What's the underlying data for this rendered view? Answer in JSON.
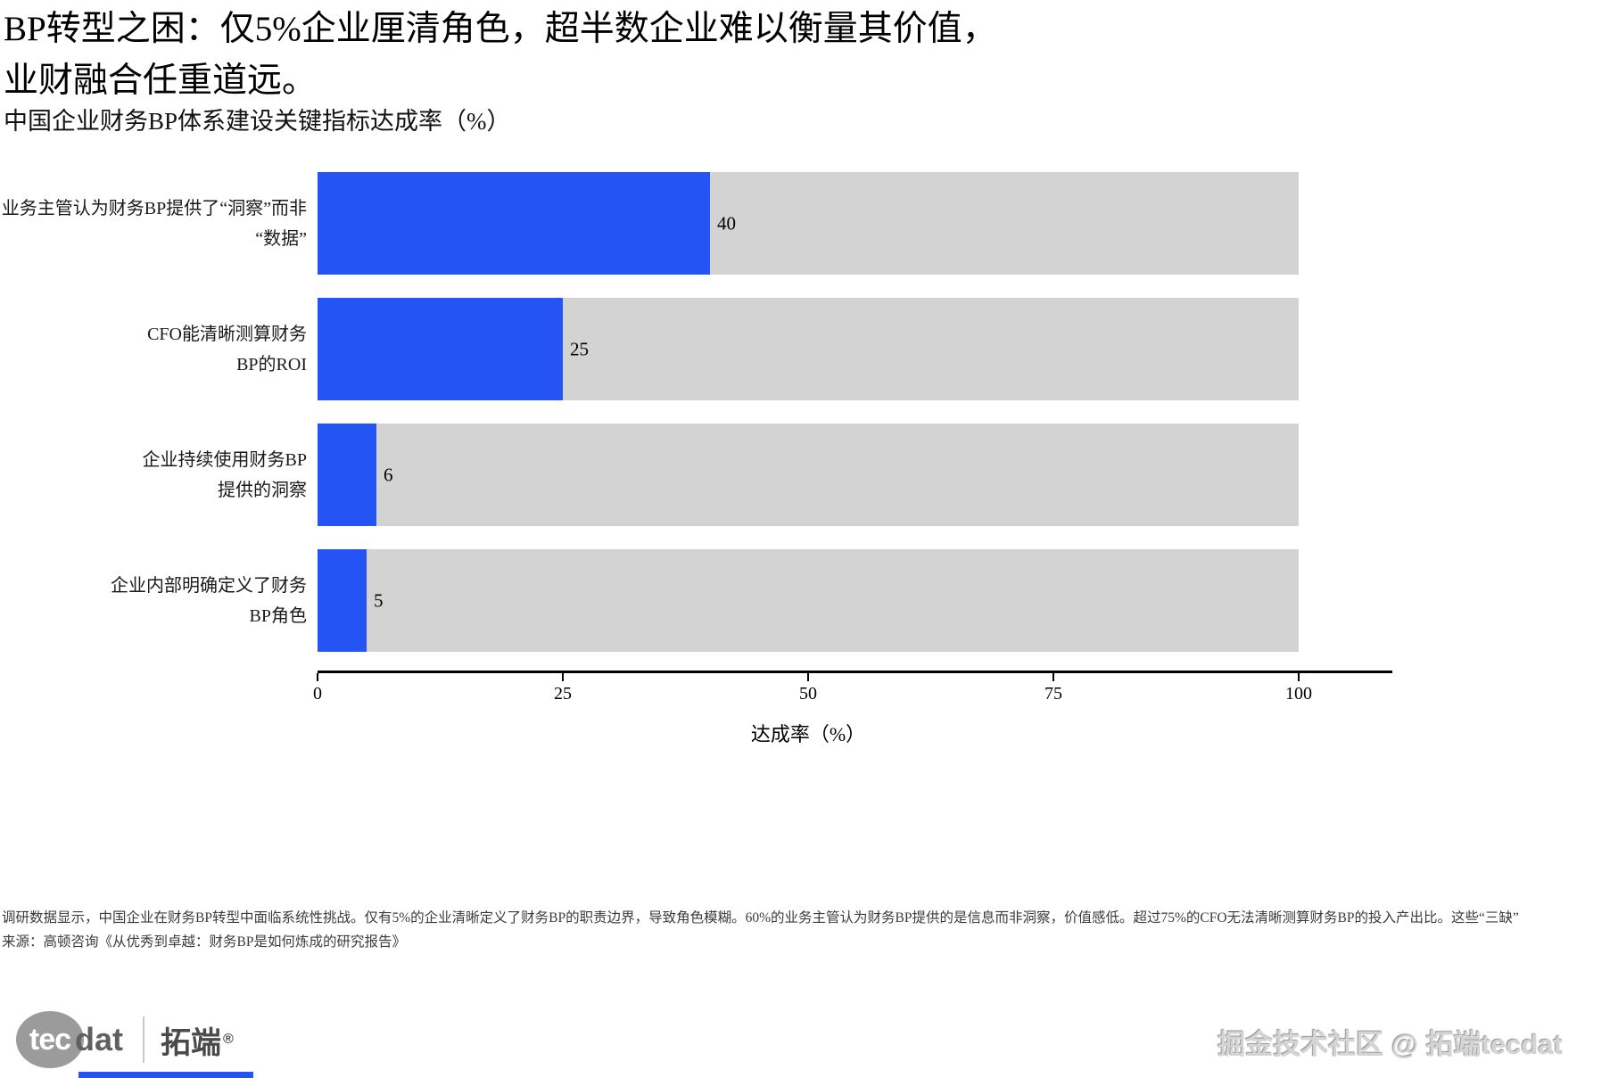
{
  "header": {
    "title_line1": "BP转型之困：仅5%企业厘清角色，超半数企业难以衡量其价值，",
    "title_line2": "业财融合任重道远。",
    "subtitle": "中国企业财务BP体系建设关键指标达成率（%）"
  },
  "chart_data": {
    "type": "bar",
    "orientation": "horizontal",
    "title": "中国企业财务BP体系建设关键指标达成率（%）",
    "categories": [
      "业务主管认为财务BP提供了“洞察”而非“数据”",
      "CFO能清晰测算财务BP的ROI",
      "企业持续使用财务BP提供的洞察",
      "企业内部明确定义了财务BP角色"
    ],
    "category_lines": [
      [
        "业务主管认为财务BP提供了“洞察”而非",
        "“数据”"
      ],
      [
        "CFO能清晰测算财务",
        "BP的ROI"
      ],
      [
        "企业持续使用财务BP",
        "提供的洞察"
      ],
      [
        "企业内部明确定义了财务",
        "BP角色"
      ]
    ],
    "values": [
      40,
      25,
      6,
      5
    ],
    "xlabel": "达成率（%）",
    "xlim": [
      0,
      100
    ],
    "x_ticks": [
      "0",
      "25",
      "50",
      "75",
      "100"
    ],
    "bar_color": "#2454f4",
    "track_color": "#d3d3d3",
    "grid": false,
    "legend": "none"
  },
  "footnote": {
    "line1": "调研数据显示，中国企业在财务BP转型中面临系统性挑战。仅有5%的企业清晰定义了财务BP的职责边界，导致角色模糊。60%的业务主管认为财务BP提供的是信息而非洞察，价值感低。超过75%的CFO无法清晰测算财务BP的投入产出比。这些“三缺”",
    "source": "来源：高顿咨询《从优秀到卓越：财务BP是如何炼成的研究报告》"
  },
  "branding": {
    "logo_tec": "tec",
    "logo_dat": "dat",
    "logo_cn": "拓端",
    "logo_reg": "®",
    "watermark": "掘金技术社区 @ 拓端tecdat"
  }
}
